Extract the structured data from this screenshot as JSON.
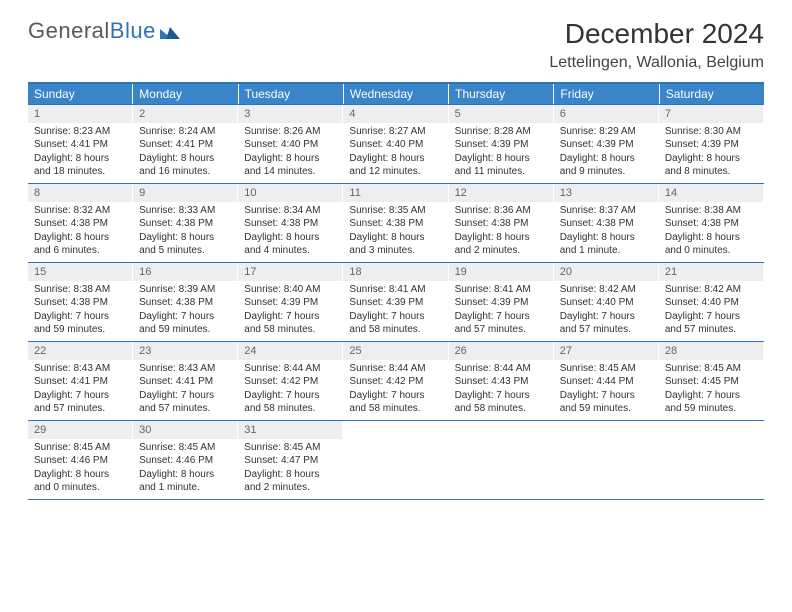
{
  "logo": {
    "word1": "General",
    "word2": "Blue"
  },
  "title": "December 2024",
  "location": "Lettelingen, Wallonia, Belgium",
  "colors": {
    "header_bar": "#3a84c9",
    "rule": "#2f74b5",
    "daynum_bg": "#eceeef",
    "text": "#333333",
    "logo_gray": "#5a5a5a"
  },
  "weekdays": [
    "Sunday",
    "Monday",
    "Tuesday",
    "Wednesday",
    "Thursday",
    "Friday",
    "Saturday"
  ],
  "weeks": [
    [
      {
        "n": "1",
        "sunrise": "Sunrise: 8:23 AM",
        "sunset": "Sunset: 4:41 PM",
        "daylight": "Daylight: 8 hours and 18 minutes."
      },
      {
        "n": "2",
        "sunrise": "Sunrise: 8:24 AM",
        "sunset": "Sunset: 4:41 PM",
        "daylight": "Daylight: 8 hours and 16 minutes."
      },
      {
        "n": "3",
        "sunrise": "Sunrise: 8:26 AM",
        "sunset": "Sunset: 4:40 PM",
        "daylight": "Daylight: 8 hours and 14 minutes."
      },
      {
        "n": "4",
        "sunrise": "Sunrise: 8:27 AM",
        "sunset": "Sunset: 4:40 PM",
        "daylight": "Daylight: 8 hours and 12 minutes."
      },
      {
        "n": "5",
        "sunrise": "Sunrise: 8:28 AM",
        "sunset": "Sunset: 4:39 PM",
        "daylight": "Daylight: 8 hours and 11 minutes."
      },
      {
        "n": "6",
        "sunrise": "Sunrise: 8:29 AM",
        "sunset": "Sunset: 4:39 PM",
        "daylight": "Daylight: 8 hours and 9 minutes."
      },
      {
        "n": "7",
        "sunrise": "Sunrise: 8:30 AM",
        "sunset": "Sunset: 4:39 PM",
        "daylight": "Daylight: 8 hours and 8 minutes."
      }
    ],
    [
      {
        "n": "8",
        "sunrise": "Sunrise: 8:32 AM",
        "sunset": "Sunset: 4:38 PM",
        "daylight": "Daylight: 8 hours and 6 minutes."
      },
      {
        "n": "9",
        "sunrise": "Sunrise: 8:33 AM",
        "sunset": "Sunset: 4:38 PM",
        "daylight": "Daylight: 8 hours and 5 minutes."
      },
      {
        "n": "10",
        "sunrise": "Sunrise: 8:34 AM",
        "sunset": "Sunset: 4:38 PM",
        "daylight": "Daylight: 8 hours and 4 minutes."
      },
      {
        "n": "11",
        "sunrise": "Sunrise: 8:35 AM",
        "sunset": "Sunset: 4:38 PM",
        "daylight": "Daylight: 8 hours and 3 minutes."
      },
      {
        "n": "12",
        "sunrise": "Sunrise: 8:36 AM",
        "sunset": "Sunset: 4:38 PM",
        "daylight": "Daylight: 8 hours and 2 minutes."
      },
      {
        "n": "13",
        "sunrise": "Sunrise: 8:37 AM",
        "sunset": "Sunset: 4:38 PM",
        "daylight": "Daylight: 8 hours and 1 minute."
      },
      {
        "n": "14",
        "sunrise": "Sunrise: 8:38 AM",
        "sunset": "Sunset: 4:38 PM",
        "daylight": "Daylight: 8 hours and 0 minutes."
      }
    ],
    [
      {
        "n": "15",
        "sunrise": "Sunrise: 8:38 AM",
        "sunset": "Sunset: 4:38 PM",
        "daylight": "Daylight: 7 hours and 59 minutes."
      },
      {
        "n": "16",
        "sunrise": "Sunrise: 8:39 AM",
        "sunset": "Sunset: 4:38 PM",
        "daylight": "Daylight: 7 hours and 59 minutes."
      },
      {
        "n": "17",
        "sunrise": "Sunrise: 8:40 AM",
        "sunset": "Sunset: 4:39 PM",
        "daylight": "Daylight: 7 hours and 58 minutes."
      },
      {
        "n": "18",
        "sunrise": "Sunrise: 8:41 AM",
        "sunset": "Sunset: 4:39 PM",
        "daylight": "Daylight: 7 hours and 58 minutes."
      },
      {
        "n": "19",
        "sunrise": "Sunrise: 8:41 AM",
        "sunset": "Sunset: 4:39 PM",
        "daylight": "Daylight: 7 hours and 57 minutes."
      },
      {
        "n": "20",
        "sunrise": "Sunrise: 8:42 AM",
        "sunset": "Sunset: 4:40 PM",
        "daylight": "Daylight: 7 hours and 57 minutes."
      },
      {
        "n": "21",
        "sunrise": "Sunrise: 8:42 AM",
        "sunset": "Sunset: 4:40 PM",
        "daylight": "Daylight: 7 hours and 57 minutes."
      }
    ],
    [
      {
        "n": "22",
        "sunrise": "Sunrise: 8:43 AM",
        "sunset": "Sunset: 4:41 PM",
        "daylight": "Daylight: 7 hours and 57 minutes."
      },
      {
        "n": "23",
        "sunrise": "Sunrise: 8:43 AM",
        "sunset": "Sunset: 4:41 PM",
        "daylight": "Daylight: 7 hours and 57 minutes."
      },
      {
        "n": "24",
        "sunrise": "Sunrise: 8:44 AM",
        "sunset": "Sunset: 4:42 PM",
        "daylight": "Daylight: 7 hours and 58 minutes."
      },
      {
        "n": "25",
        "sunrise": "Sunrise: 8:44 AM",
        "sunset": "Sunset: 4:42 PM",
        "daylight": "Daylight: 7 hours and 58 minutes."
      },
      {
        "n": "26",
        "sunrise": "Sunrise: 8:44 AM",
        "sunset": "Sunset: 4:43 PM",
        "daylight": "Daylight: 7 hours and 58 minutes."
      },
      {
        "n": "27",
        "sunrise": "Sunrise: 8:45 AM",
        "sunset": "Sunset: 4:44 PM",
        "daylight": "Daylight: 7 hours and 59 minutes."
      },
      {
        "n": "28",
        "sunrise": "Sunrise: 8:45 AM",
        "sunset": "Sunset: 4:45 PM",
        "daylight": "Daylight: 7 hours and 59 minutes."
      }
    ],
    [
      {
        "n": "29",
        "sunrise": "Sunrise: 8:45 AM",
        "sunset": "Sunset: 4:46 PM",
        "daylight": "Daylight: 8 hours and 0 minutes."
      },
      {
        "n": "30",
        "sunrise": "Sunrise: 8:45 AM",
        "sunset": "Sunset: 4:46 PM",
        "daylight": "Daylight: 8 hours and 1 minute."
      },
      {
        "n": "31",
        "sunrise": "Sunrise: 8:45 AM",
        "sunset": "Sunset: 4:47 PM",
        "daylight": "Daylight: 8 hours and 2 minutes."
      },
      {
        "empty": true
      },
      {
        "empty": true
      },
      {
        "empty": true
      },
      {
        "empty": true
      }
    ]
  ]
}
